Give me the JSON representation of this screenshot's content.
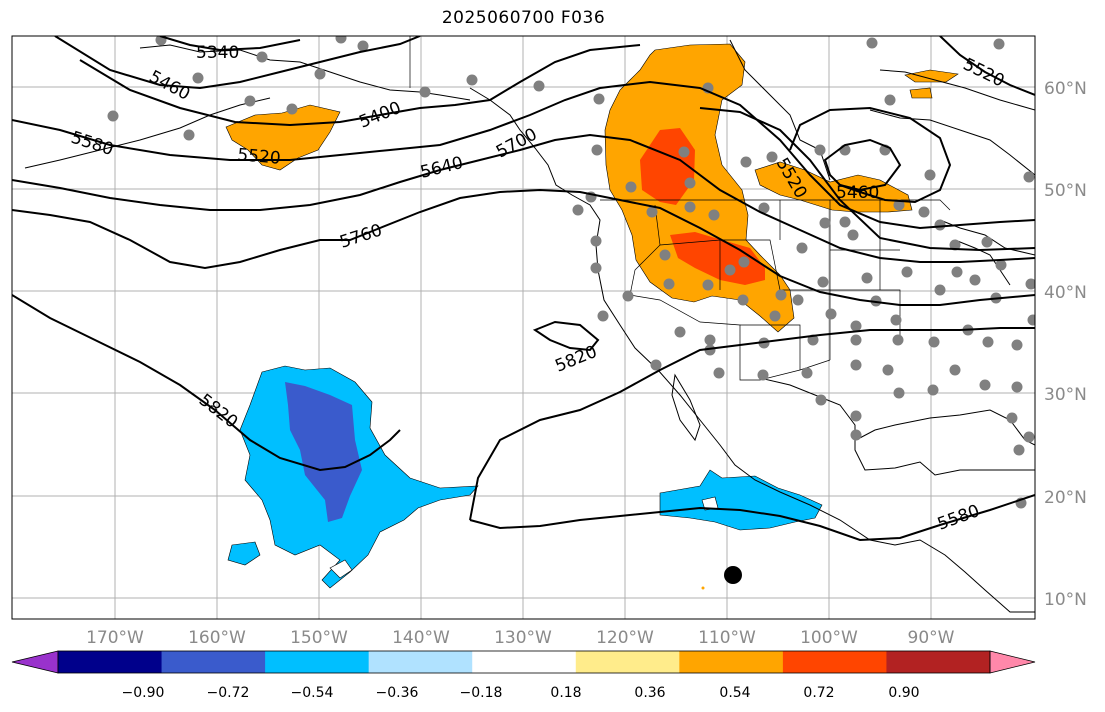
{
  "title": "2025060700 F036",
  "map": {
    "lon_ticks": [
      "170°W",
      "160°W",
      "150°W",
      "140°W",
      "130°W",
      "120°W",
      "110°W",
      "100°W",
      "90°W"
    ],
    "lat_ticks": [
      "60°N",
      "50°N",
      "40°N",
      "30°N",
      "20°N",
      "10°N"
    ],
    "contour_labels": [
      "5340",
      "5460",
      "5400",
      "5580",
      "5520",
      "5640",
      "5700",
      "5760",
      "5820",
      "5820",
      "5520",
      "5460",
      "5520",
      "5580"
    ],
    "colors": {
      "land_outline": "#000000",
      "grid": "#b0b0b0",
      "station_dot": "#808080",
      "low_center": "#000000"
    }
  },
  "colorbar": {
    "colors": [
      "#9932cc",
      "#00008b",
      "#3a5bcc",
      "#00bfff",
      "#b0e2ff",
      "#ffffff",
      "#ffec8b",
      "#ffa500",
      "#ff4500",
      "#b22222",
      "#ff88aa"
    ],
    "ticks": [
      "−0.90",
      "−0.72",
      "−0.54",
      "−0.36",
      "−0.18",
      "0.18",
      "0.36",
      "0.54",
      "0.72",
      "0.90"
    ]
  }
}
